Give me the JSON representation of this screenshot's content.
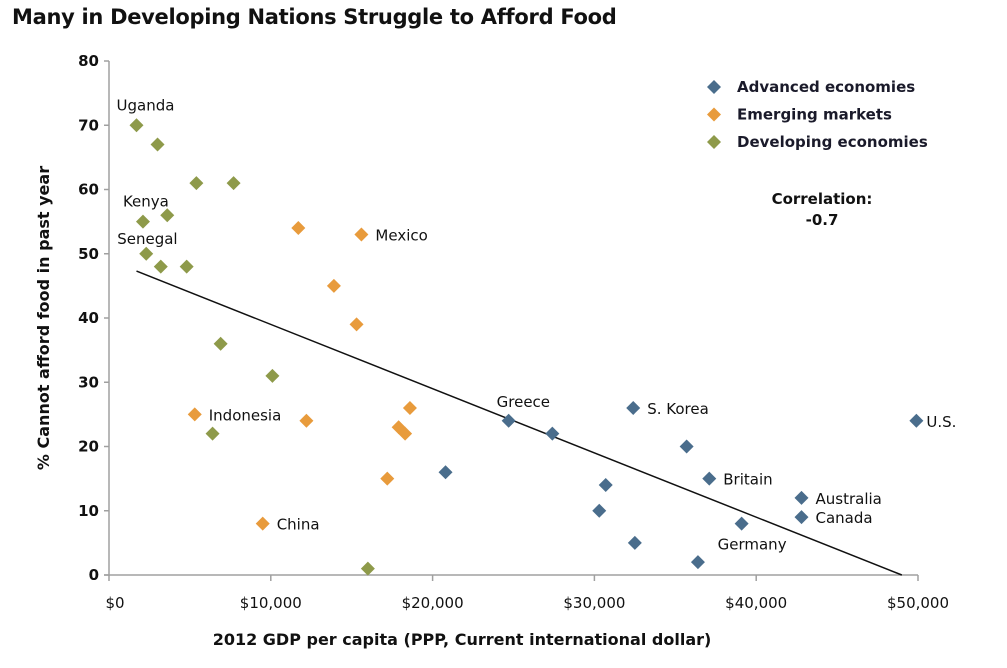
{
  "chart_data": {
    "type": "scatter",
    "title": "Many in Developing Nations Struggle to Afford Food",
    "xlabel": "2012 GDP per capita (PPP, Current international dollar)",
    "ylabel": "% Cannot afford food in past year",
    "xlim": [
      0,
      50000
    ],
    "ylim": [
      0,
      80
    ],
    "x_ticks": [
      0,
      10000,
      20000,
      30000,
      40000,
      50000
    ],
    "x_tick_labels": [
      "$0",
      "$10,000",
      "$20,000",
      "$30,000",
      "$40,000",
      "$50,000"
    ],
    "y_ticks": [
      0,
      10,
      20,
      30,
      40,
      50,
      60,
      70,
      80
    ],
    "y_tick_labels": [
      "0",
      "10",
      "20",
      "30",
      "40",
      "50",
      "60",
      "70",
      "80"
    ],
    "grid": false,
    "legend_position": "top-right",
    "annotation": {
      "line1": "Correlation:",
      "line2": "-0.7"
    },
    "trendline": {
      "x": [
        1700,
        49000
      ],
      "y": [
        47.3,
        0
      ],
      "color": "#111111"
    },
    "series": [
      {
        "name": "Advanced economies",
        "color": "#4a6d8c",
        "points": [
          {
            "x": 20800,
            "y": 16,
            "label": ""
          },
          {
            "x": 24700,
            "y": 24,
            "label": "Greece"
          },
          {
            "x": 27400,
            "y": 22,
            "label": ""
          },
          {
            "x": 32400,
            "y": 26,
            "label": "S. Korea"
          },
          {
            "x": 35700,
            "y": 20,
            "label": ""
          },
          {
            "x": 37100,
            "y": 15,
            "label": "Britain"
          },
          {
            "x": 30700,
            "y": 14,
            "label": ""
          },
          {
            "x": 30300,
            "y": 10,
            "label": ""
          },
          {
            "x": 39100,
            "y": 8,
            "label": "Germany"
          },
          {
            "x": 32500,
            "y": 5,
            "label": ""
          },
          {
            "x": 36400,
            "y": 2,
            "label": ""
          },
          {
            "x": 42800,
            "y": 12,
            "label": "Australia"
          },
          {
            "x": 42800,
            "y": 9,
            "label": "Canada"
          },
          {
            "x": 49900,
            "y": 24,
            "label": "U.S."
          }
        ]
      },
      {
        "name": "Emerging markets",
        "color": "#e89b3c",
        "points": [
          {
            "x": 11700,
            "y": 54,
            "label": ""
          },
          {
            "x": 15600,
            "y": 53,
            "label": "Mexico"
          },
          {
            "x": 13900,
            "y": 45,
            "label": ""
          },
          {
            "x": 15300,
            "y": 39,
            "label": ""
          },
          {
            "x": 5300,
            "y": 25,
            "label": "Indonesia"
          },
          {
            "x": 12200,
            "y": 24,
            "label": ""
          },
          {
            "x": 18600,
            "y": 26,
            "label": ""
          },
          {
            "x": 17900,
            "y": 23,
            "label": ""
          },
          {
            "x": 18300,
            "y": 22,
            "label": ""
          },
          {
            "x": 17200,
            "y": 15,
            "label": ""
          },
          {
            "x": 9500,
            "y": 8,
            "label": "China"
          }
        ]
      },
      {
        "name": "Developing economies",
        "color": "#8e9a4a",
        "points": [
          {
            "x": 1700,
            "y": 70,
            "label": "Uganda"
          },
          {
            "x": 3000,
            "y": 67,
            "label": ""
          },
          {
            "x": 5400,
            "y": 61,
            "label": ""
          },
          {
            "x": 7700,
            "y": 61,
            "label": ""
          },
          {
            "x": 2100,
            "y": 55,
            "label": "Kenya"
          },
          {
            "x": 3600,
            "y": 56,
            "label": ""
          },
          {
            "x": 2300,
            "y": 50,
            "label": "Senegal"
          },
          {
            "x": 3200,
            "y": 48,
            "label": ""
          },
          {
            "x": 4800,
            "y": 48,
            "label": ""
          },
          {
            "x": 6900,
            "y": 36,
            "label": ""
          },
          {
            "x": 10100,
            "y": 31,
            "label": ""
          },
          {
            "x": 6400,
            "y": 22,
            "label": ""
          },
          {
            "x": 16000,
            "y": 1,
            "label": ""
          }
        ]
      }
    ]
  }
}
